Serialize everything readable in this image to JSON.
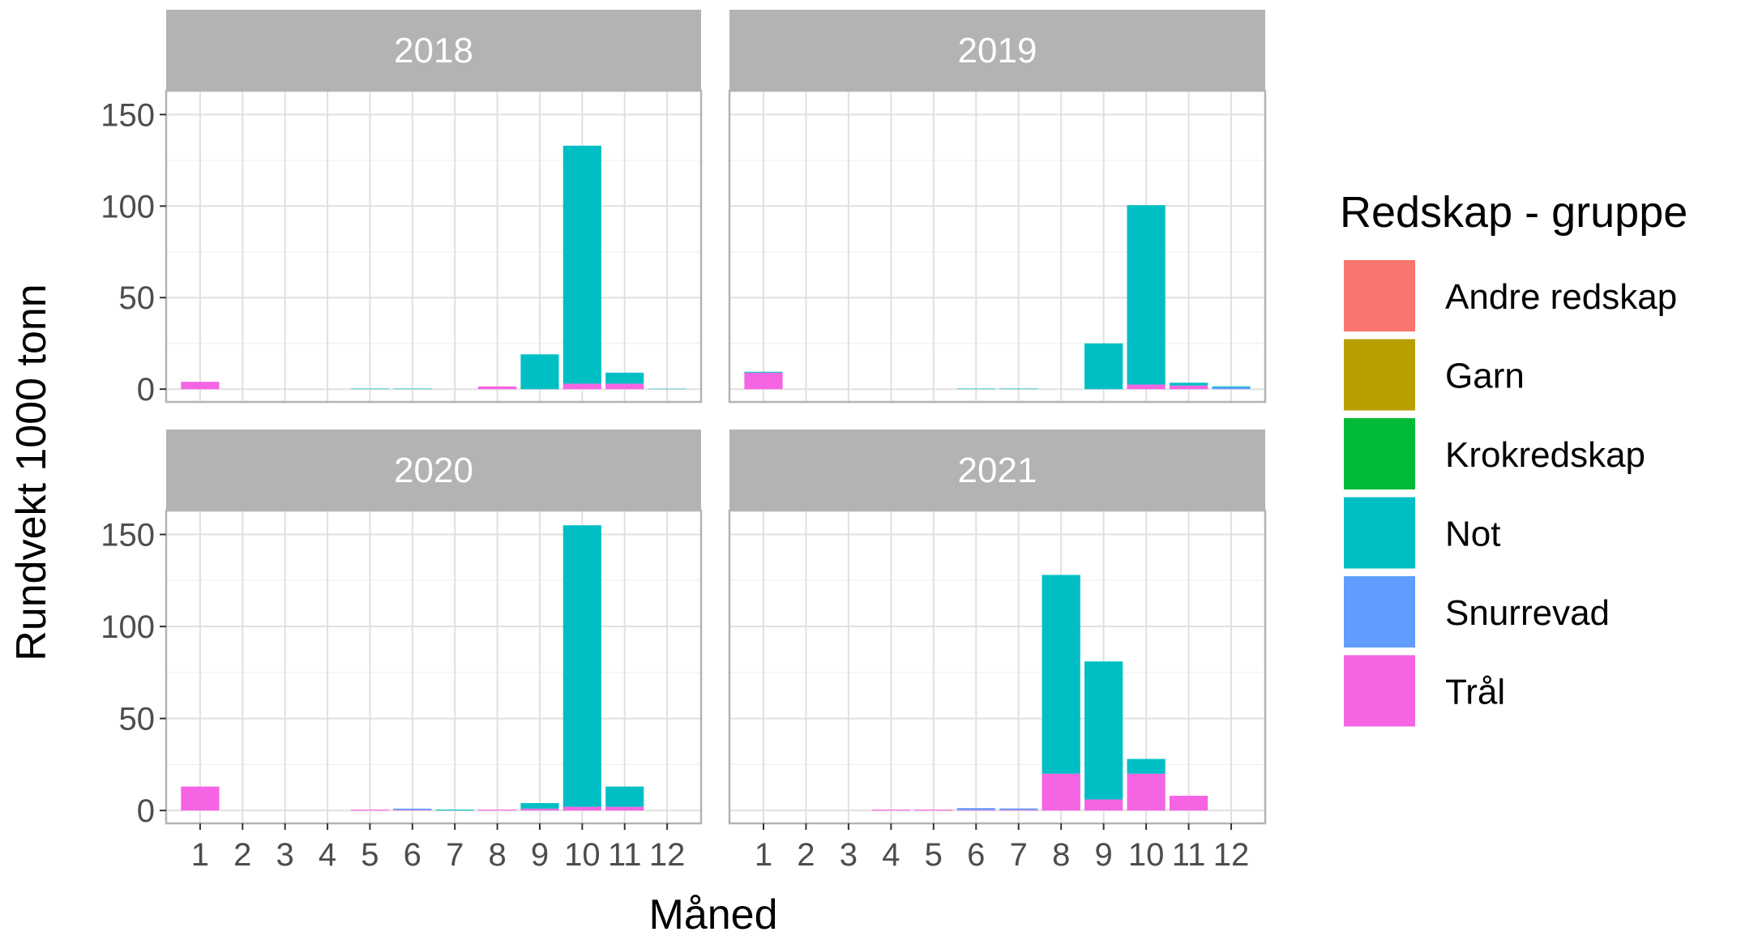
{
  "chart_data": {
    "type": "bar",
    "stacked": true,
    "facet_by": "year",
    "xlabel": "Måned",
    "ylabel": "Rundvekt 1000 tonn",
    "x": [
      "1",
      "2",
      "3",
      "4",
      "5",
      "6",
      "7",
      "8",
      "9",
      "10",
      "11",
      "12"
    ],
    "ylim": [
      -7,
      163
    ],
    "yticks": [
      0,
      50,
      100,
      150
    ],
    "grid": true,
    "legend": {
      "title": "Redskap - gruppe",
      "position": "right",
      "entries": [
        {
          "name": "Andre redskap",
          "color": "#F8766D"
        },
        {
          "name": "Garn",
          "color": "#B79F00"
        },
        {
          "name": "Krokredskap",
          "color": "#00BA38"
        },
        {
          "name": "Not",
          "color": "#00BFC4"
        },
        {
          "name": "Snurrevad",
          "color": "#619CFF"
        },
        {
          "name": "Trål",
          "color": "#F564E3"
        }
      ]
    },
    "panels": [
      {
        "title": "2018",
        "series": [
          {
            "name": "Andre redskap",
            "values": [
              0,
              0,
              0,
              0,
              0,
              0,
              0,
              0,
              0,
              0,
              0,
              0
            ]
          },
          {
            "name": "Garn",
            "values": [
              0,
              0,
              0,
              0,
              0,
              0,
              0,
              0,
              0,
              0,
              0,
              0
            ]
          },
          {
            "name": "Krokredskap",
            "values": [
              0,
              0,
              0,
              0,
              0,
              0,
              0,
              0,
              0,
              0,
              0,
              0
            ]
          },
          {
            "name": "Not",
            "values": [
              0,
              0,
              0,
              0,
              0.3,
              0.3,
              0,
              0,
              19,
              130,
              6,
              0.2
            ]
          },
          {
            "name": "Snurrevad",
            "values": [
              0,
              0,
              0,
              0,
              0,
              0,
              0,
              0,
              0,
              0,
              0,
              0
            ]
          },
          {
            "name": "Trål",
            "values": [
              4,
              0,
              0,
              0,
              0,
              0,
              0,
              1.5,
              0,
              3,
              3,
              0
            ]
          }
        ]
      },
      {
        "title": "2019",
        "series": [
          {
            "name": "Andre redskap",
            "values": [
              0,
              0,
              0,
              0,
              0,
              0,
              0,
              0,
              0,
              0,
              0,
              0
            ]
          },
          {
            "name": "Garn",
            "values": [
              0,
              0,
              0,
              0,
              0,
              0,
              0,
              0,
              0,
              0,
              0,
              0
            ]
          },
          {
            "name": "Krokredskap",
            "values": [
              0,
              0,
              0,
              0,
              0,
              0,
              0,
              0,
              0,
              0,
              0,
              0
            ]
          },
          {
            "name": "Not",
            "values": [
              0.5,
              0,
              0,
              0,
              0,
              0.3,
              0.3,
              0,
              25,
              98,
              1.5,
              0.5
            ]
          },
          {
            "name": "Snurrevad",
            "values": [
              0,
              0,
              0,
              0,
              0,
              0,
              0,
              0,
              0,
              0,
              0,
              1
            ]
          },
          {
            "name": "Trål",
            "values": [
              9,
              0,
              0,
              0,
              0,
              0,
              0,
              0,
              0,
              2.5,
              2,
              0
            ]
          }
        ]
      },
      {
        "title": "2020",
        "series": [
          {
            "name": "Andre redskap",
            "values": [
              0,
              0,
              0,
              0,
              0,
              0,
              0,
              0,
              0,
              0,
              0,
              0
            ]
          },
          {
            "name": "Garn",
            "values": [
              0,
              0,
              0,
              0,
              0,
              0,
              0,
              0,
              0,
              0,
              0,
              0
            ]
          },
          {
            "name": "Krokredskap",
            "values": [
              0,
              0,
              0,
              0,
              0,
              0,
              0,
              0,
              0,
              0,
              0,
              0
            ]
          },
          {
            "name": "Not",
            "values": [
              0,
              0,
              0,
              0,
              0,
              0,
              0.5,
              0,
              3,
              153,
              11,
              0
            ]
          },
          {
            "name": "Snurrevad",
            "values": [
              0,
              0,
              0,
              0,
              0,
              0.7,
              0,
              0,
              0,
              0,
              0,
              0
            ]
          },
          {
            "name": "Trål",
            "values": [
              13,
              0,
              0,
              0,
              0.5,
              0.3,
              0,
              0.5,
              1,
              2,
              2,
              0
            ]
          }
        ]
      },
      {
        "title": "2021",
        "series": [
          {
            "name": "Andre redskap",
            "values": [
              0,
              0,
              0,
              0,
              0,
              0,
              0,
              0,
              0,
              0,
              0,
              0
            ]
          },
          {
            "name": "Garn",
            "values": [
              0,
              0,
              0,
              0,
              0,
              0,
              0,
              0,
              0,
              0,
              0,
              0
            ]
          },
          {
            "name": "Krokredskap",
            "values": [
              0,
              0,
              0,
              0,
              0,
              0,
              0,
              0,
              0,
              0,
              0,
              0
            ]
          },
          {
            "name": "Not",
            "values": [
              0,
              0,
              0,
              0,
              0,
              0,
              0,
              108,
              75,
              8,
              0,
              0
            ]
          },
          {
            "name": "Snurrevad",
            "values": [
              0,
              0,
              0,
              0,
              0,
              1,
              0.8,
              0,
              0,
              0,
              0,
              0
            ]
          },
          {
            "name": "Trål",
            "values": [
              0,
              0,
              0,
              0.5,
              0.5,
              0.3,
              0.3,
              20,
              6,
              20,
              8,
              0
            ]
          }
        ]
      }
    ]
  }
}
